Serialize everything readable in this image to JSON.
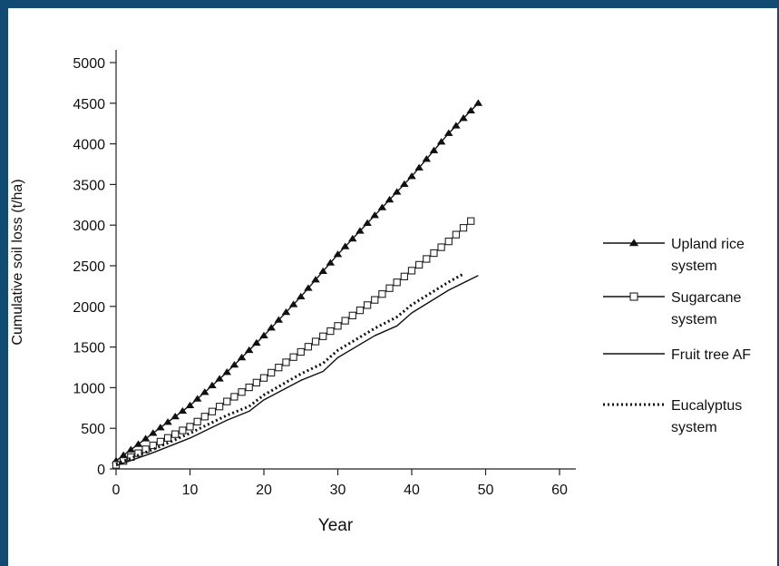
{
  "chart_data": {
    "type": "line",
    "xlabel": "Year",
    "ylabel": "Cumulative soil loss (t/ha)",
    "xlim": [
      0,
      60
    ],
    "ylim": [
      0,
      5000
    ],
    "xticks": [
      0,
      10,
      20,
      30,
      40,
      50,
      60
    ],
    "yticks": [
      0,
      500,
      1000,
      1500,
      2000,
      2500,
      3000,
      3500,
      4000,
      4500,
      5000
    ],
    "grid": false,
    "legend_position": "right",
    "series": [
      {
        "name": "Upland rice system",
        "legend_lines": [
          "Upland rice",
          "system"
        ],
        "marker": "filled-triangle",
        "line": "solid",
        "color": "#111111",
        "x": [
          0,
          5,
          10,
          15,
          20,
          25,
          30,
          35,
          40,
          45,
          49
        ],
        "y": [
          100,
          440,
          780,
          1190,
          1640,
          2120,
          2640,
          3120,
          3600,
          4130,
          4500
        ]
      },
      {
        "name": "Sugarcane system",
        "legend_lines": [
          "Sugarcane",
          "system"
        ],
        "marker": "open-square",
        "line": "solid",
        "color": "#111111",
        "x": [
          0,
          5,
          10,
          15,
          20,
          25,
          30,
          35,
          40,
          45,
          48
        ],
        "y": [
          50,
          290,
          520,
          830,
          1120,
          1440,
          1760,
          2080,
          2440,
          2800,
          3050
        ]
      },
      {
        "name": "Fruit tree AF",
        "legend_lines": [
          "Fruit tree AF"
        ],
        "marker": "none",
        "line": "solid",
        "color": "#111111",
        "x": [
          0,
          5,
          10,
          15,
          18,
          20,
          25,
          28,
          30,
          35,
          38,
          40,
          45,
          49
        ],
        "y": [
          40,
          200,
          380,
          600,
          710,
          850,
          1090,
          1200,
          1370,
          1640,
          1760,
          1920,
          2200,
          2380
        ]
      },
      {
        "name": "Eucalyptus system",
        "legend_lines": [
          "Eucalyptus",
          "system"
        ],
        "marker": "none",
        "line": "dotted",
        "color": "#111111",
        "x": [
          0,
          5,
          10,
          15,
          18,
          20,
          25,
          28,
          30,
          35,
          38,
          40,
          45,
          47
        ],
        "y": [
          60,
          240,
          440,
          660,
          770,
          910,
          1170,
          1300,
          1460,
          1730,
          1870,
          2020,
          2300,
          2400
        ]
      }
    ]
  }
}
